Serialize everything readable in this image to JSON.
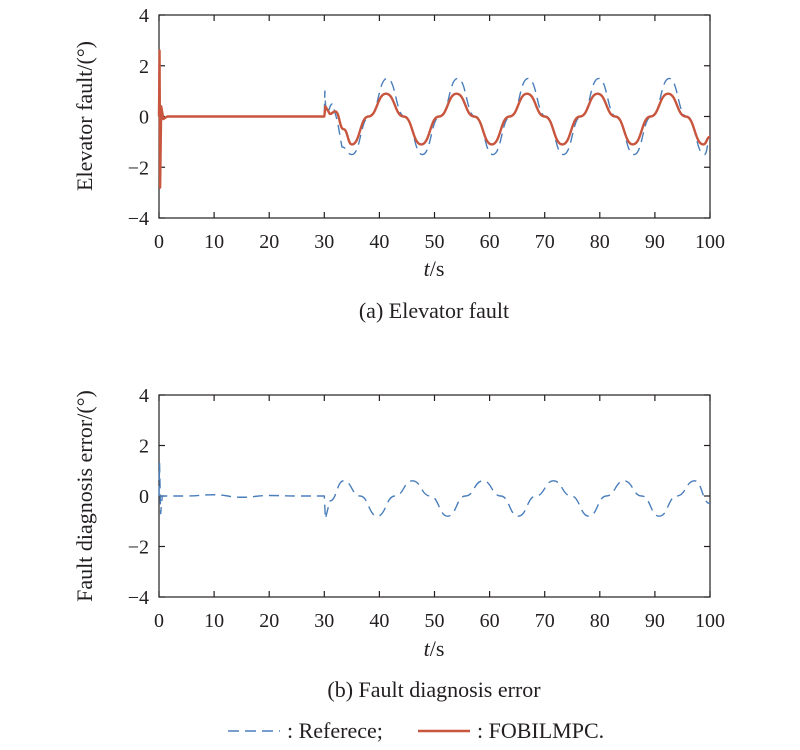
{
  "colors": {
    "reference": "#4a7ebb",
    "fobilmpc": "#c8553d",
    "axes": "#231f20"
  },
  "legend": {
    "reference_label": ": Referece;",
    "fobilmpc_label": ": FOBILMPC."
  },
  "chart_data": [
    {
      "type": "line",
      "caption": "(a) Elevator fault",
      "xlabel_italic": "t",
      "xlabel_unit": "/s",
      "ylabel": "Elevator fault/(°)",
      "xlim": [
        0,
        100
      ],
      "ylim": [
        -4,
        4
      ],
      "xticks": [
        "0",
        "10",
        "20",
        "30",
        "40",
        "50",
        "60",
        "70",
        "80",
        "90",
        "100"
      ],
      "yticks": [
        "4",
        "2",
        "0",
        "−2",
        "−4"
      ],
      "grid": false,
      "series": [
        {
          "style": "dashed",
          "points": [
            [
              0,
              0
            ],
            [
              0.1,
              1.5
            ],
            [
              0.25,
              -0.6
            ],
            [
              0.5,
              0
            ],
            [
              30,
              0
            ],
            [
              30.1,
              1.0
            ],
            [
              30.3,
              0.1
            ],
            [
              31.5,
              0.5
            ],
            [
              32.4,
              -0.2
            ],
            [
              33.2,
              -1.2
            ],
            [
              35,
              -1.5
            ],
            [
              38.2,
              0
            ],
            [
              41.4,
              1.5
            ],
            [
              44.6,
              0
            ],
            [
              47.8,
              -1.5
            ],
            [
              51,
              0
            ],
            [
              54.2,
              1.5
            ],
            [
              57.4,
              0
            ],
            [
              60.6,
              -1.5
            ],
            [
              63.8,
              0
            ],
            [
              67,
              1.5
            ],
            [
              70.2,
              0
            ],
            [
              73.4,
              -1.5
            ],
            [
              76.6,
              0
            ],
            [
              79.8,
              1.5
            ],
            [
              83,
              0
            ],
            [
              86.2,
              -1.5
            ],
            [
              89.4,
              0
            ],
            [
              92.6,
              1.5
            ],
            [
              95.8,
              0
            ],
            [
              99,
              -1.5
            ],
            [
              100,
              -0.9
            ]
          ]
        },
        {
          "style": "solid",
          "points": [
            [
              0,
              0
            ],
            [
              0.1,
              2.6
            ],
            [
              0.2,
              -2.8
            ],
            [
              0.4,
              0.4
            ],
            [
              0.8,
              -0.1
            ],
            [
              1.5,
              0
            ],
            [
              30,
              0
            ],
            [
              30.2,
              0.4
            ],
            [
              31,
              0.1
            ],
            [
              32,
              0.2
            ],
            [
              33.5,
              -0.5
            ],
            [
              35,
              -1.1
            ],
            [
              38,
              0
            ],
            [
              41.2,
              0.9
            ],
            [
              44.4,
              0
            ],
            [
              47.6,
              -1.1
            ],
            [
              50.8,
              0
            ],
            [
              54,
              0.9
            ],
            [
              57.2,
              0
            ],
            [
              60.4,
              -1.1
            ],
            [
              63.6,
              0
            ],
            [
              66.8,
              0.9
            ],
            [
              70,
              0
            ],
            [
              73.2,
              -1.1
            ],
            [
              76.4,
              0
            ],
            [
              79.6,
              0.9
            ],
            [
              82.8,
              0
            ],
            [
              86,
              -1.1
            ],
            [
              89.2,
              0
            ],
            [
              92.4,
              0.9
            ],
            [
              95.6,
              0
            ],
            [
              98.8,
              -1.1
            ],
            [
              100,
              -0.8
            ]
          ]
        }
      ]
    },
    {
      "type": "line",
      "caption": "(b) Fault diagnosis error",
      "xlabel_italic": "t",
      "xlabel_unit": "/s",
      "ylabel": "Fault diagnosis error/(°)",
      "xlim": [
        0,
        100
      ],
      "ylim": [
        -4,
        4
      ],
      "xticks": [
        "0",
        "10",
        "20",
        "30",
        "40",
        "50",
        "60",
        "70",
        "80",
        "90",
        "100"
      ],
      "yticks": [
        "4",
        "2",
        "0",
        "−2",
        "−4"
      ],
      "grid": false,
      "series": [
        {
          "style": "dashed",
          "points": [
            [
              0,
              0
            ],
            [
              0.1,
              1.3
            ],
            [
              0.3,
              -0.7
            ],
            [
              0.6,
              0
            ],
            [
              5,
              0
            ],
            [
              10,
              0.05
            ],
            [
              15,
              -0.05
            ],
            [
              20,
              0.02
            ],
            [
              25,
              0
            ],
            [
              30,
              0
            ],
            [
              30.2,
              -0.9
            ],
            [
              31,
              -0.2
            ],
            [
              33.5,
              0.6
            ],
            [
              36.5,
              0
            ],
            [
              39.6,
              -0.8
            ],
            [
              42.8,
              0
            ],
            [
              46,
              0.6
            ],
            [
              49.2,
              0
            ],
            [
              52.4,
              -0.8
            ],
            [
              55.6,
              0
            ],
            [
              58.8,
              0.6
            ],
            [
              62,
              0
            ],
            [
              65.2,
              -0.8
            ],
            [
              68.4,
              0
            ],
            [
              71.6,
              0.6
            ],
            [
              74.8,
              0
            ],
            [
              78,
              -0.8
            ],
            [
              81.2,
              0
            ],
            [
              84.4,
              0.6
            ],
            [
              87.6,
              0
            ],
            [
              90.8,
              -0.8
            ],
            [
              94,
              0
            ],
            [
              97.2,
              0.6
            ],
            [
              100,
              -0.3
            ]
          ]
        }
      ]
    }
  ]
}
